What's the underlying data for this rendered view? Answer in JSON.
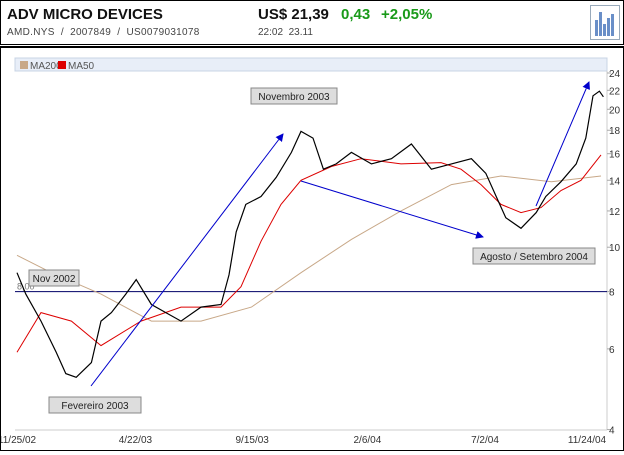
{
  "header": {
    "title": "ADV MICRO DEVICES",
    "ticker": "AMD.NYS",
    "id": "2007849",
    "isin": "US0079031078",
    "price": "US$ 21,39",
    "change": "0,43",
    "change_pct": "+2,05%",
    "time": "22:02",
    "date": "23.11"
  },
  "colors": {
    "price": "#000000",
    "ma50": "#dd0000",
    "ma200": "#c8a888",
    "arrow": "#0000cc",
    "level": "#000066",
    "positive": "#1a9a1a"
  },
  "chart_data": {
    "type": "line",
    "yscale": "log",
    "ylim": [
      4,
      24
    ],
    "yticks": [
      4,
      6,
      8,
      10,
      12,
      14,
      16,
      18,
      20,
      22,
      24
    ],
    "xticks": [
      {
        "day": 0,
        "label": "11/25/02"
      },
      {
        "day": 148,
        "label": "4/22/03"
      },
      {
        "day": 294,
        "label": "9/15/03"
      },
      {
        "day": 438,
        "label": "2/6/04"
      },
      {
        "day": 585,
        "label": "7/2/04"
      },
      {
        "day": 730,
        "label": "11/24/04"
      }
    ],
    "xlim": [
      0,
      735
    ],
    "legend": [
      {
        "name": "MA200",
        "color": "#c8a888"
      },
      {
        "name": "MA50",
        "color": "#dd0000"
      }
    ],
    "legend_position": "top-left",
    "reference_line": {
      "value": 8,
      "label": "8,00"
    },
    "series": [
      {
        "name": "Price",
        "x": [
          0,
          11,
          30,
          49,
          61,
          74,
          93,
          105,
          118,
          136,
          149,
          168,
          186,
          205,
          230,
          255,
          265,
          274,
          286,
          305,
          324,
          343,
          355,
          370,
          383,
          399,
          418,
          443,
          468,
          493,
          518,
          543,
          568,
          586,
          599,
          611,
          630,
          649,
          661,
          680,
          699,
          711,
          720,
          728,
          733
        ],
        "y": [
          8.8,
          7.9,
          6.9,
          5.9,
          5.3,
          5.2,
          5.6,
          6.9,
          7.2,
          7.9,
          8.5,
          7.5,
          7.2,
          6.9,
          7.4,
          7.5,
          8.7,
          10.8,
          12.4,
          12.9,
          14.2,
          16.1,
          17.9,
          17.3,
          14.8,
          15.2,
          16.1,
          15.2,
          15.6,
          16.8,
          14.8,
          15.2,
          15.6,
          14.5,
          12.9,
          11.6,
          11.0,
          11.9,
          12.9,
          13.9,
          15.2,
          17.3,
          21.4,
          21.9,
          21.3
        ]
      },
      {
        "name": "MA50",
        "x": [
          0,
          30,
          68,
          105,
          155,
          205,
          255,
          280,
          305,
          330,
          355,
          393,
          430,
          480,
          530,
          555,
          580,
          605,
          630,
          655,
          680,
          705,
          730
        ],
        "y": [
          5.9,
          7.2,
          6.9,
          6.1,
          6.9,
          7.4,
          7.4,
          8.2,
          10.3,
          12.4,
          14.0,
          15.0,
          15.6,
          15.2,
          15.3,
          14.8,
          13.7,
          12.4,
          11.9,
          12.2,
          13.3,
          14.0,
          15.9
        ]
      },
      {
        "name": "MA200",
        "x": [
          0,
          43,
          105,
          168,
          230,
          293,
          355,
          418,
          480,
          543,
          605,
          668,
          730
        ],
        "y": [
          9.6,
          8.8,
          7.9,
          6.9,
          6.9,
          7.4,
          8.8,
          10.4,
          12.0,
          13.7,
          14.3,
          13.9,
          14.3
        ]
      }
    ],
    "annotations": [
      {
        "label": "Nov 2002"
      },
      {
        "label": "Fevereiro 2003"
      },
      {
        "label": "Novembro 2003"
      },
      {
        "label": "Agosto / Setembro 2004"
      }
    ]
  }
}
